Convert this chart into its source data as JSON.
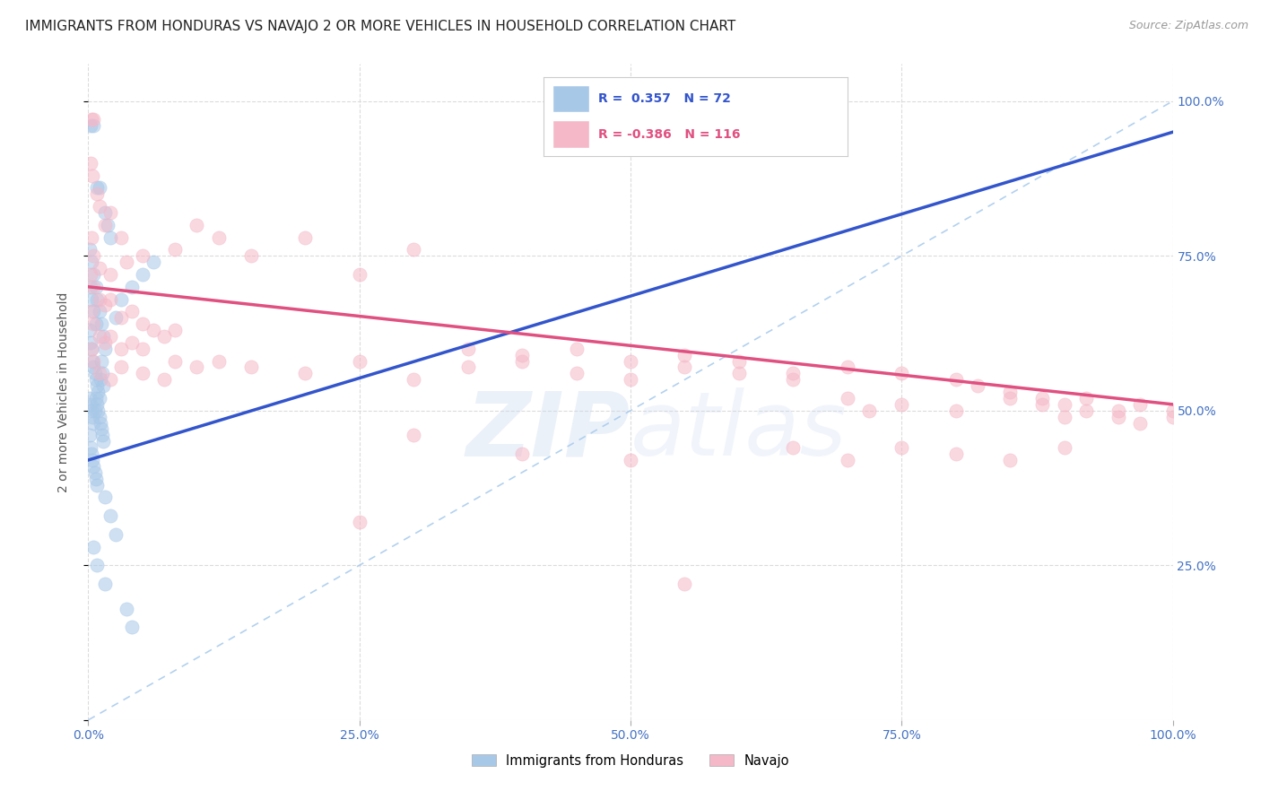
{
  "title": "IMMIGRANTS FROM HONDURAS VS NAVAJO 2 OR MORE VEHICLES IN HOUSEHOLD CORRELATION CHART",
  "source_text": "Source: ZipAtlas.com",
  "ylabel": "2 or more Vehicles in Household",
  "legend_series": [
    {
      "label": "Immigrants from Honduras",
      "color": "#a8c8e8",
      "R": 0.357,
      "N": 72
    },
    {
      "label": "Navajo",
      "color": "#f5b8c8",
      "R": -0.386,
      "N": 116
    }
  ],
  "blue_scatter": [
    [
      0.2,
      96
    ],
    [
      0.5,
      96
    ],
    [
      0.8,
      86
    ],
    [
      1.0,
      86
    ],
    [
      1.5,
      82
    ],
    [
      1.8,
      80
    ],
    [
      2.0,
      78
    ],
    [
      0.1,
      76
    ],
    [
      0.3,
      74
    ],
    [
      0.5,
      72
    ],
    [
      0.7,
      70
    ],
    [
      0.8,
      68
    ],
    [
      1.0,
      66
    ],
    [
      1.2,
      64
    ],
    [
      1.4,
      62
    ],
    [
      1.5,
      60
    ],
    [
      0.2,
      70
    ],
    [
      0.3,
      68
    ],
    [
      0.5,
      66
    ],
    [
      0.7,
      64
    ],
    [
      0.1,
      63
    ],
    [
      0.2,
      61
    ],
    [
      0.3,
      60
    ],
    [
      0.4,
      58
    ],
    [
      0.5,
      57
    ],
    [
      0.6,
      56
    ],
    [
      0.7,
      55
    ],
    [
      0.8,
      54
    ],
    [
      0.9,
      53
    ],
    [
      1.0,
      52
    ],
    [
      1.1,
      55
    ],
    [
      1.2,
      58
    ],
    [
      1.3,
      56
    ],
    [
      1.4,
      54
    ],
    [
      0.1,
      52
    ],
    [
      0.2,
      51
    ],
    [
      0.3,
      50
    ],
    [
      0.4,
      49
    ],
    [
      0.5,
      48
    ],
    [
      0.6,
      50
    ],
    [
      0.7,
      52
    ],
    [
      0.8,
      51
    ],
    [
      0.9,
      50
    ],
    [
      1.0,
      49
    ],
    [
      1.1,
      48
    ],
    [
      1.2,
      47
    ],
    [
      1.3,
      46
    ],
    [
      1.4,
      45
    ],
    [
      0.1,
      46
    ],
    [
      0.2,
      44
    ],
    [
      0.3,
      43
    ],
    [
      0.4,
      42
    ],
    [
      0.5,
      41
    ],
    [
      0.6,
      40
    ],
    [
      0.7,
      39
    ],
    [
      0.8,
      38
    ],
    [
      2.5,
      65
    ],
    [
      3.0,
      68
    ],
    [
      4.0,
      70
    ],
    [
      5.0,
      72
    ],
    [
      6.0,
      74
    ],
    [
      1.5,
      36
    ],
    [
      2.0,
      33
    ],
    [
      2.5,
      30
    ],
    [
      3.5,
      18
    ],
    [
      4.0,
      15
    ],
    [
      0.5,
      28
    ],
    [
      0.8,
      25
    ],
    [
      1.5,
      22
    ]
  ],
  "pink_scatter": [
    [
      0.3,
      97
    ],
    [
      0.5,
      97
    ],
    [
      0.2,
      90
    ],
    [
      0.4,
      88
    ],
    [
      0.8,
      85
    ],
    [
      1.0,
      83
    ],
    [
      1.5,
      80
    ],
    [
      2.0,
      82
    ],
    [
      3.0,
      78
    ],
    [
      0.3,
      78
    ],
    [
      0.5,
      75
    ],
    [
      1.0,
      73
    ],
    [
      2.0,
      72
    ],
    [
      3.5,
      74
    ],
    [
      5.0,
      75
    ],
    [
      8.0,
      76
    ],
    [
      10.0,
      80
    ],
    [
      12.0,
      78
    ],
    [
      0.2,
      72
    ],
    [
      0.5,
      70
    ],
    [
      1.0,
      68
    ],
    [
      1.5,
      67
    ],
    [
      2.0,
      68
    ],
    [
      3.0,
      65
    ],
    [
      4.0,
      66
    ],
    [
      5.0,
      64
    ],
    [
      6.0,
      63
    ],
    [
      7.0,
      62
    ],
    [
      8.0,
      63
    ],
    [
      15.0,
      75
    ],
    [
      20.0,
      78
    ],
    [
      25.0,
      72
    ],
    [
      30.0,
      76
    ],
    [
      0.3,
      66
    ],
    [
      0.5,
      64
    ],
    [
      1.0,
      62
    ],
    [
      1.5,
      61
    ],
    [
      2.0,
      62
    ],
    [
      3.0,
      60
    ],
    [
      4.0,
      61
    ],
    [
      5.0,
      60
    ],
    [
      8.0,
      58
    ],
    [
      10.0,
      57
    ],
    [
      12.0,
      58
    ],
    [
      15.0,
      57
    ],
    [
      20.0,
      56
    ],
    [
      25.0,
      58
    ],
    [
      30.0,
      55
    ],
    [
      35.0,
      57
    ],
    [
      40.0,
      58
    ],
    [
      45.0,
      56
    ],
    [
      50.0,
      55
    ],
    [
      55.0,
      57
    ],
    [
      60.0,
      56
    ],
    [
      65.0,
      55
    ],
    [
      0.3,
      60
    ],
    [
      0.5,
      58
    ],
    [
      1.0,
      56
    ],
    [
      2.0,
      55
    ],
    [
      3.0,
      57
    ],
    [
      5.0,
      56
    ],
    [
      7.0,
      55
    ],
    [
      35.0,
      60
    ],
    [
      40.0,
      59
    ],
    [
      45.0,
      60
    ],
    [
      50.0,
      58
    ],
    [
      55.0,
      59
    ],
    [
      60.0,
      58
    ],
    [
      65.0,
      56
    ],
    [
      70.0,
      57
    ],
    [
      75.0,
      56
    ],
    [
      80.0,
      55
    ],
    [
      82.0,
      54
    ],
    [
      85.0,
      53
    ],
    [
      88.0,
      52
    ],
    [
      90.0,
      51
    ],
    [
      92.0,
      52
    ],
    [
      95.0,
      50
    ],
    [
      97.0,
      51
    ],
    [
      100.0,
      50
    ],
    [
      70.0,
      52
    ],
    [
      72.0,
      50
    ],
    [
      75.0,
      51
    ],
    [
      80.0,
      50
    ],
    [
      85.0,
      52
    ],
    [
      88.0,
      51
    ],
    [
      90.0,
      49
    ],
    [
      92.0,
      50
    ],
    [
      95.0,
      49
    ],
    [
      97.0,
      48
    ],
    [
      100.0,
      49
    ],
    [
      65.0,
      44
    ],
    [
      70.0,
      42
    ],
    [
      75.0,
      44
    ],
    [
      80.0,
      43
    ],
    [
      85.0,
      42
    ],
    [
      90.0,
      44
    ],
    [
      30.0,
      46
    ],
    [
      40.0,
      43
    ],
    [
      50.0,
      42
    ],
    [
      25.0,
      32
    ],
    [
      55.0,
      22
    ]
  ],
  "blue_line_x": [
    0.0,
    100.0
  ],
  "blue_line_y": [
    42.0,
    95.0
  ],
  "pink_line_x": [
    0.0,
    100.0
  ],
  "pink_line_y": [
    70.0,
    51.0
  ],
  "dash_line_x": [
    0.0,
    100.0
  ],
  "dash_line_y": [
    0.0,
    100.0
  ],
  "xlim": [
    0,
    100
  ],
  "ylim": [
    0,
    106
  ],
  "xticks": [
    0,
    25,
    50,
    75,
    100
  ],
  "yticks": [
    0,
    25,
    50,
    75,
    100
  ],
  "x_tick_labels": [
    "0.0%",
    "25.0%",
    "50.0%",
    "75.0%",
    "100.0%"
  ],
  "y_right_labels": [
    "25.0%",
    "50.0%",
    "75.0%",
    "100.0%"
  ],
  "title_fontsize": 11,
  "axis_label_fontsize": 10,
  "tick_fontsize": 10,
  "source_fontsize": 9,
  "scatter_size": 120,
  "scatter_alpha": 0.55,
  "background_color": "#ffffff",
  "grid_color": "#d8d8d8",
  "blue_color": "#a8c8e8",
  "blue_line_color": "#3355cc",
  "pink_color": "#f5b8c8",
  "pink_line_color": "#e05080",
  "dash_color": "#aaccee",
  "axis_color": "#4472c4",
  "title_color": "#222222",
  "watermark_zip": "ZIP",
  "watermark_atlas": "atlas",
  "watermark_color": "#c8d8f0",
  "watermark_alpha": 0.35
}
